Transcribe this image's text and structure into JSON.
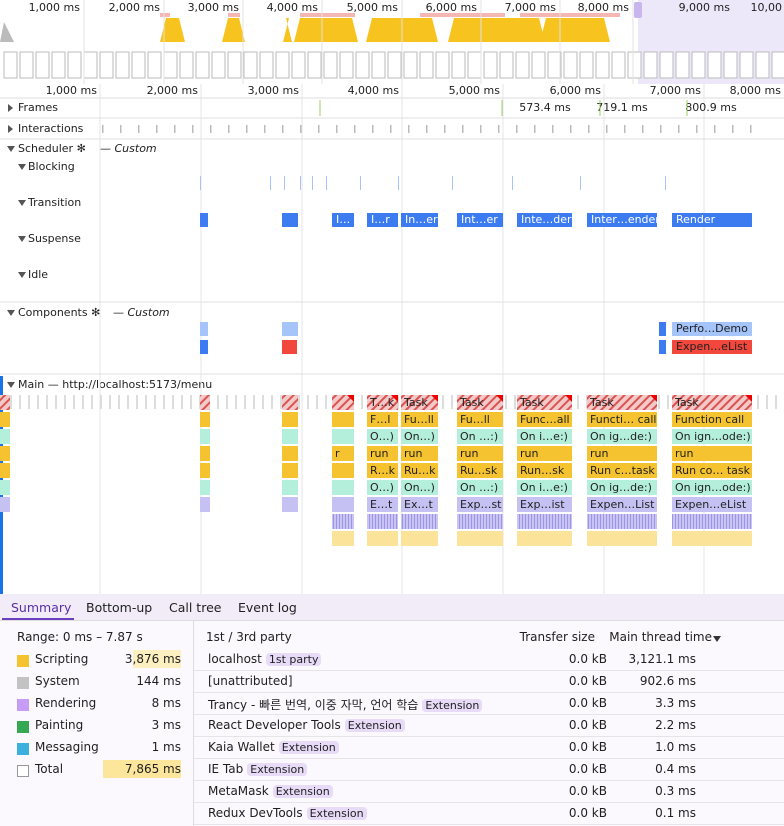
{
  "overview": {
    "ticks": [
      "1,000 ms",
      "2,000 ms",
      "3,000 ms",
      "4,000 ms",
      "5,000 ms",
      "6,000 ms",
      "7,000 ms",
      "8,000 ms",
      "9,000 ms",
      "10,00"
    ]
  },
  "ruler": {
    "ticks": [
      "1,000 ms",
      "2,000 ms",
      "3,000 ms",
      "4,000 ms",
      "5,000 ms",
      "6,000 ms",
      "7,000 ms",
      "8,000 ms"
    ]
  },
  "tracks": {
    "frames": {
      "label": "Frames",
      "durations": [
        "573.4 ms",
        "719.1 ms",
        "800.9 ms"
      ]
    },
    "interactions": {
      "label": "Interactions"
    },
    "scheduler": {
      "label": "Scheduler ✻",
      "tag": "— Custom",
      "lanes": [
        "Blocking",
        "Transition",
        "Suspense",
        "Idle"
      ],
      "transition_labels": [
        "I…",
        "I…r",
        "In…er",
        "Int…er",
        "Inte…der",
        "Inter…ender",
        "Render"
      ]
    },
    "components": {
      "label": "Components ✻",
      "tag": "— Custom",
      "labels": [
        "Perfo…Demo",
        "Expen…eList"
      ]
    },
    "main": {
      "label": "Main — http://localhost:5173/menu",
      "flame": [
        [
          null,
          null,
          null,
          "r",
          null,
          null,
          null
        ],
        [
          "T…k",
          "F…l",
          "O…)",
          "run",
          "R…k",
          "O…)",
          "E…t"
        ],
        [
          "Task",
          "Fu…ll",
          "On…)",
          "run",
          "Ru…k",
          "On…)",
          "Ex…t"
        ],
        [
          "Task",
          "Fu…ll",
          "On …:)",
          "run",
          "Ru…sk",
          "On …:)",
          "Exp…st"
        ],
        [
          "Task",
          "Func…all",
          "On i…e:)",
          "run",
          "Run…sk",
          "On i…e:)",
          "Exp…ist"
        ],
        [
          "Task",
          "Functi… call",
          "On ig…de:)",
          "run",
          "Run c…task",
          "On ig…de:)",
          "Expen…List"
        ],
        [
          "Task",
          "Function call",
          "On ign…ode:)",
          "run",
          "Run co… task",
          "On ign…ode:)",
          "Expen…eList"
        ]
      ]
    }
  },
  "tabs": [
    "Summary",
    "Bottom-up",
    "Call tree",
    "Event log"
  ],
  "summary": {
    "range": "Range: 0 ms – 7.87 s",
    "rows": [
      {
        "label": "Scripting",
        "value": "3,876 ms"
      },
      {
        "label": "System",
        "value": "144 ms"
      },
      {
        "label": "Rendering",
        "value": "8 ms"
      },
      {
        "label": "Painting",
        "value": "3 ms"
      },
      {
        "label": "Messaging",
        "value": "1 ms"
      },
      {
        "label": "Total",
        "value": "7,865 ms"
      }
    ]
  },
  "party_table": {
    "columns": [
      "1st / 3rd party",
      "Transfer size",
      "Main thread time"
    ],
    "rows": [
      {
        "name": "localhost",
        "badge": "1st party",
        "transfer": "0.0 kB",
        "time": "3,121.1 ms"
      },
      {
        "name": "[unattributed]",
        "transfer": "0.0 kB",
        "time": "902.6 ms"
      },
      {
        "name": "Trancy - 빠른 번역, 이중 자막, 언어 학습",
        "badge": "Extension",
        "transfer": "0.0 kB",
        "time": "3.3 ms"
      },
      {
        "name": "React Developer Tools",
        "badge": "Extension",
        "transfer": "0.0 kB",
        "time": "2.2 ms"
      },
      {
        "name": "Kaia Wallet",
        "badge": "Extension",
        "transfer": "0.0 kB",
        "time": "1.0 ms"
      },
      {
        "name": "IE Tab",
        "badge": "Extension",
        "transfer": "0.0 kB",
        "time": "0.4 ms"
      },
      {
        "name": "MetaMask",
        "badge": "Extension",
        "transfer": "0.0 kB",
        "time": "0.3 ms"
      },
      {
        "name": "Redux DevTools",
        "badge": "Extension",
        "transfer": "0.0 kB",
        "time": "0.1 ms"
      }
    ]
  }
}
